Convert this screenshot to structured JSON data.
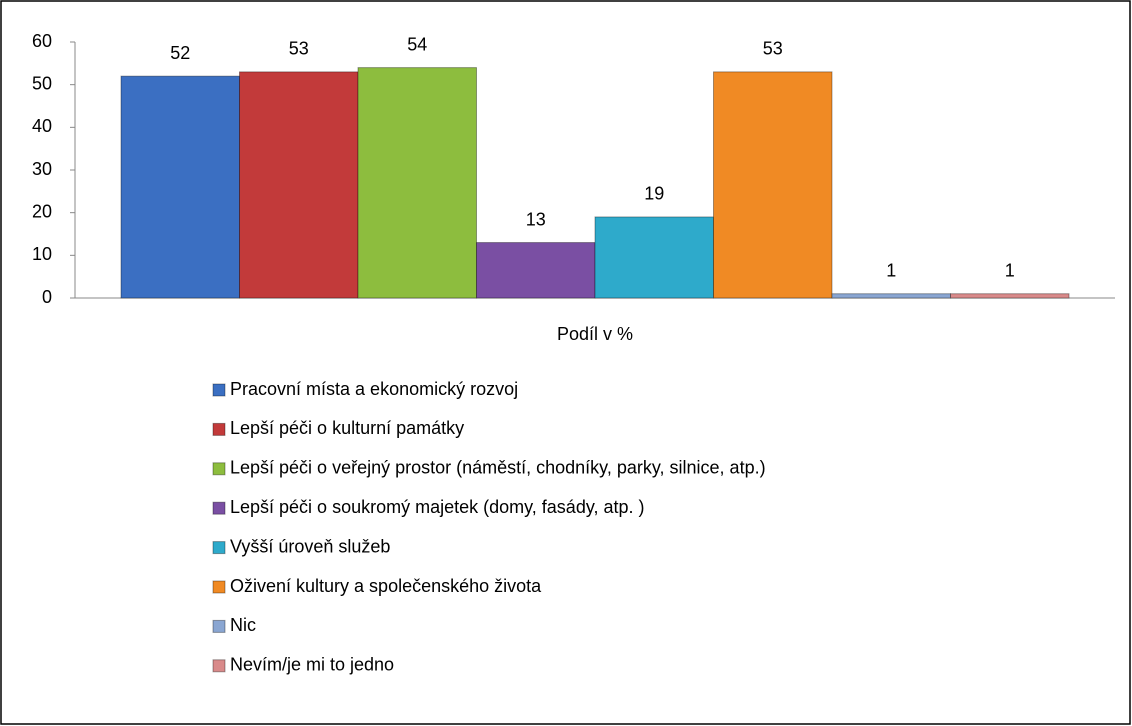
{
  "chart_data": {
    "type": "bar",
    "categories": [
      "Podíl v %"
    ],
    "series": [
      {
        "name": "Pracovní místa a ekonomický rozvoj",
        "color": "#3b6fc2",
        "values": [
          52
        ]
      },
      {
        "name": "Lepší péči o kulturní památky",
        "color": "#c23a3a",
        "values": [
          53
        ]
      },
      {
        "name": "Lepší péči o veřejný prostor (náměstí, chodníky, parky, silnice, atp.)",
        "color": "#8dbd3e",
        "values": [
          54
        ]
      },
      {
        "name": "Lepší péči o soukromý majetek (domy, fasády, atp. )",
        "color": "#7a4fa3",
        "values": [
          13
        ]
      },
      {
        "name": "Vyšší úroveň služeb",
        "color": "#2eaacb",
        "values": [
          19
        ]
      },
      {
        "name": "Oživení kultury a společenského života",
        "color": "#f08a24",
        "values": [
          53
        ]
      },
      {
        "name": "Nic",
        "color": "#8aa6d2",
        "values": [
          1
        ]
      },
      {
        "name": "Nevím/je mi to jedno",
        "color": "#d98a8a",
        "values": [
          1
        ]
      }
    ],
    "ylim": [
      0,
      60
    ],
    "yticks": [
      0,
      10,
      20,
      30,
      40,
      50,
      60
    ],
    "grid": false,
    "legend": "bottom"
  }
}
